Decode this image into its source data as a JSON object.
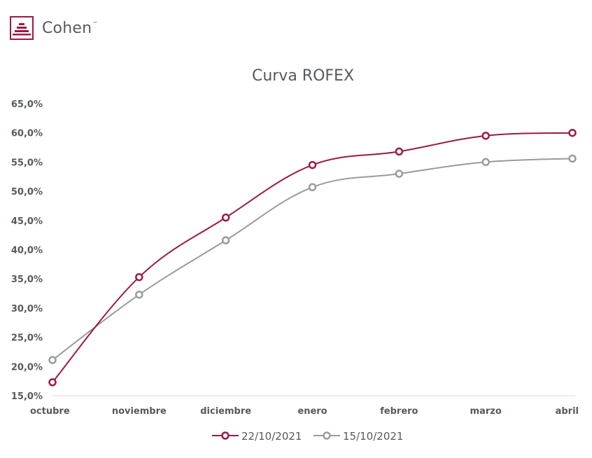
{
  "brand": {
    "name": "Cohen",
    "tm": "™",
    "color": "#9b1b46"
  },
  "chart_data": {
    "type": "line",
    "title": "Curva ROFEX",
    "xlabel": "",
    "ylabel": "",
    "categories": [
      "octubre",
      "noviembre",
      "diciembre",
      "enero",
      "febrero",
      "marzo",
      "abril"
    ],
    "y_ticks": [
      "15,0%",
      "20,0%",
      "25,0%",
      "30,0%",
      "35,0%",
      "40,0%",
      "45,0%",
      "50,0%",
      "55,0%",
      "60,0%",
      "65,0%"
    ],
    "ylim": [
      15,
      65
    ],
    "grid": false,
    "legend_position": "bottom",
    "series": [
      {
        "name": "22/10/2021",
        "color": "#9b1b46",
        "values": [
          17.3,
          35.3,
          45.5,
          54.5,
          56.8,
          59.5,
          60.0
        ]
      },
      {
        "name": "15/10/2021",
        "color": "#969d9a",
        "values": [
          21.1,
          32.3,
          41.6,
          50.7,
          53.0,
          55.0,
          55.6
        ]
      }
    ]
  }
}
